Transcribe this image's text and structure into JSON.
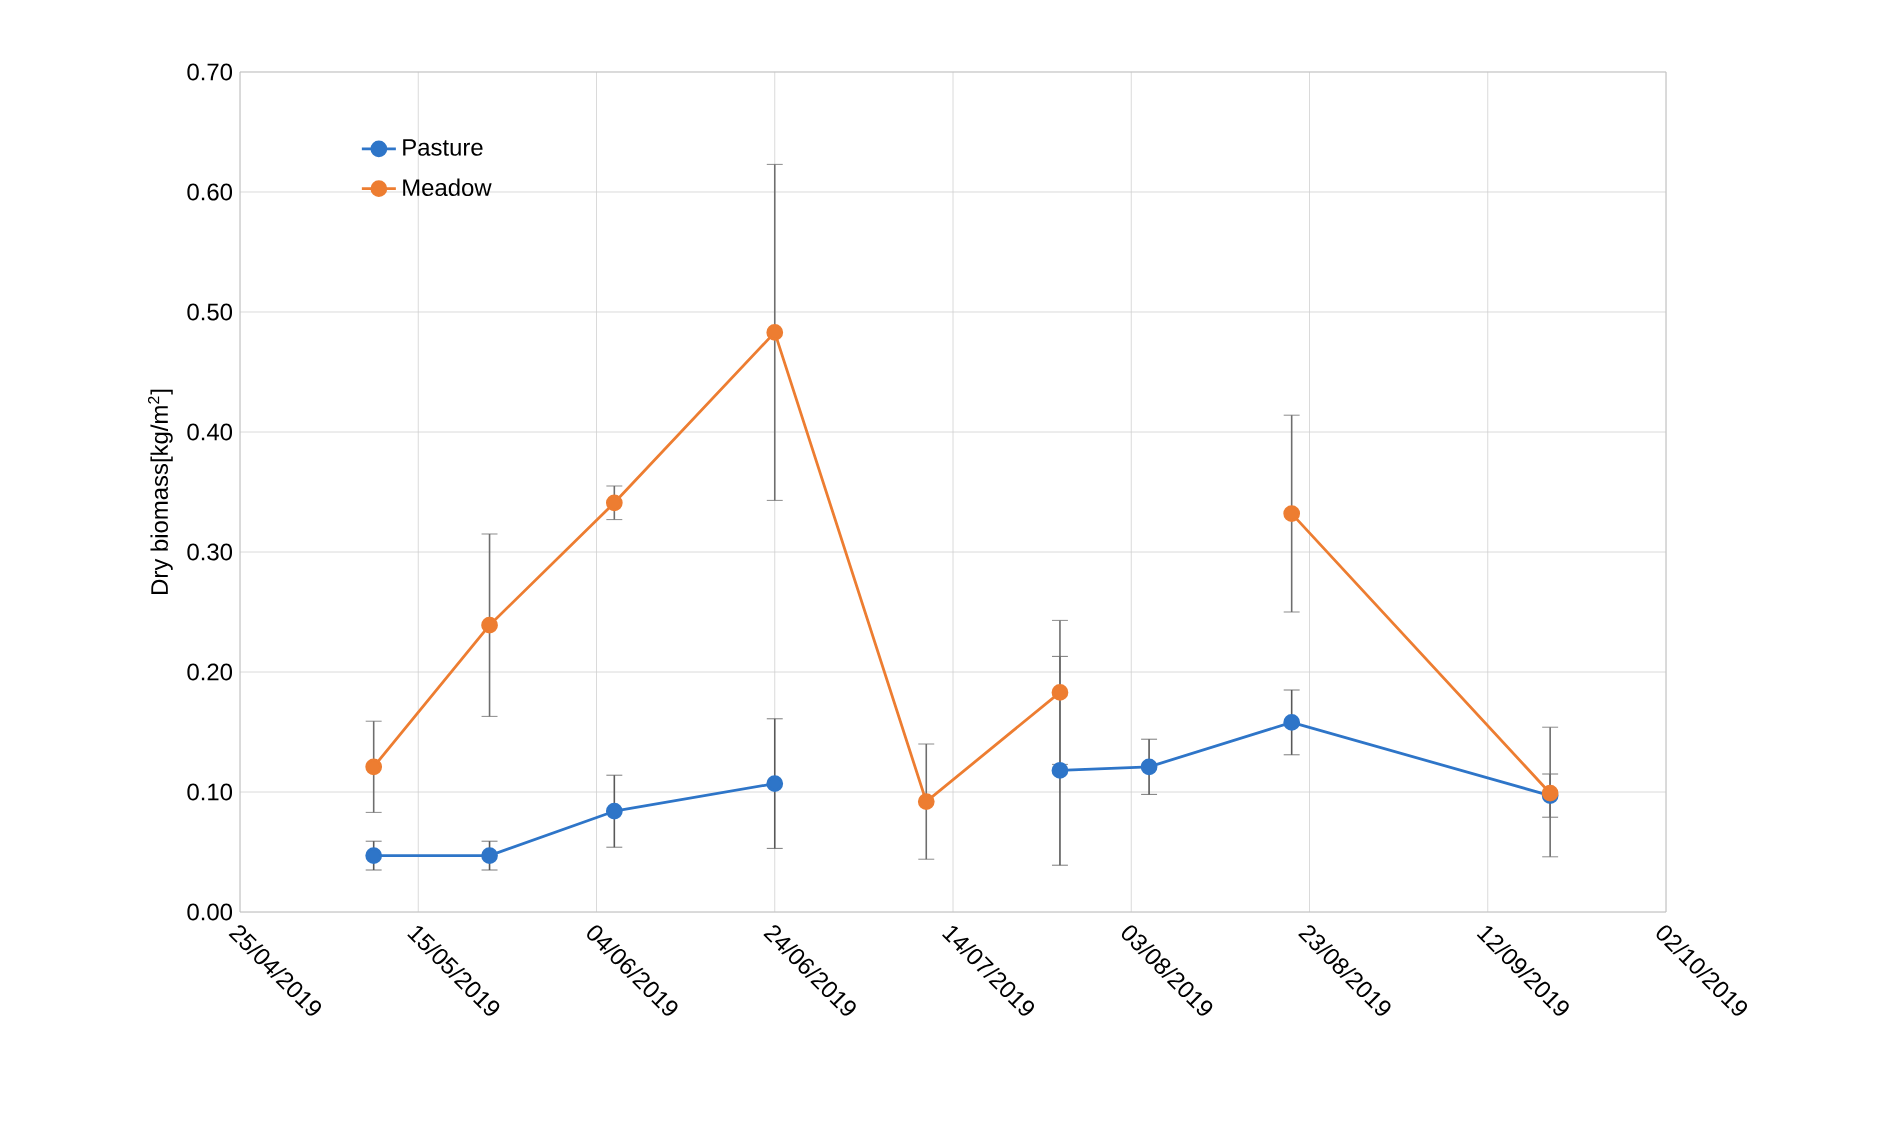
{
  "chart_data": {
    "type": "line",
    "ylabel": "Dry biomass[kg/m$^{2}$]",
    "x": [
      "2019-05-10",
      "2019-05-23",
      "2019-06-06",
      "2019-06-24",
      "2019-07-11",
      "2019-07-26",
      "2019-08-05",
      "2019-08-21",
      "2019-09-19"
    ],
    "series": [
      {
        "name": "Pasture",
        "color": "#2e75c8",
        "values": [
          0.047,
          0.047,
          0.084,
          0.107,
          null,
          0.118,
          0.121,
          0.158,
          0.097
        ],
        "errors": [
          0.012,
          0.012,
          0.03,
          0.054,
          null,
          [
            0.039,
            0.213
          ],
          0.023,
          0.027,
          [
            0.079,
            0.115
          ]
        ]
      },
      {
        "name": "Meadow",
        "color": "#ed7d31",
        "values": [
          0.121,
          0.239,
          0.341,
          0.483,
          0.092,
          0.183,
          null,
          0.332,
          0.099
        ],
        "errors": [
          0.038,
          0.076,
          0.014,
          0.14,
          0.048,
          [
            0.123,
            0.243
          ],
          null,
          0.082,
          [
            0.046,
            0.154
          ]
        ]
      }
    ],
    "xlim": [
      "2019-04-25",
      "2019-10-02"
    ],
    "xticks": [
      {
        "value": "2019-04-25",
        "label": "25/04/2019"
      },
      {
        "value": "2019-05-15",
        "label": "15/05/2019"
      },
      {
        "value": "2019-06-04",
        "label": "04/06/2019"
      },
      {
        "value": "2019-06-24",
        "label": "24/06/2019"
      },
      {
        "value": "2019-07-14",
        "label": "14/07/2019"
      },
      {
        "value": "2019-08-03",
        "label": "03/08/2019"
      },
      {
        "value": "2019-08-23",
        "label": "23/08/2019"
      },
      {
        "value": "2019-09-12",
        "label": "12/09/2019"
      },
      {
        "value": "2019-10-02",
        "label": "02/10/2019"
      }
    ],
    "ylim": [
      0,
      0.7
    ],
    "yticks": [
      {
        "value": 0,
        "label": "0.00"
      },
      {
        "value": 0.1,
        "label": "0.10"
      },
      {
        "value": 0.2,
        "label": "0.20"
      },
      {
        "value": 0.3,
        "label": "0.30"
      },
      {
        "value": 0.4,
        "label": "0.40"
      },
      {
        "value": 0.5,
        "label": "0.50"
      },
      {
        "value": 0.6,
        "label": "0.60"
      },
      {
        "value": 0.7,
        "label": "0.70"
      }
    ],
    "grid": true,
    "legend": "top left",
    "marker": "circle",
    "line_style": "solid"
  }
}
